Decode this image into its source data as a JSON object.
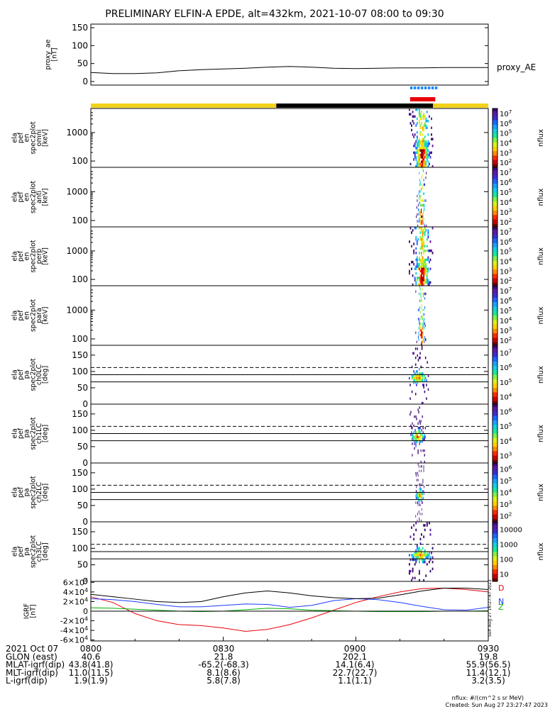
{
  "title": "PRELIMINARY ELFIN-A EPDE, alt=432km, 2021-10-07 08:00 to 09:30",
  "colors": {
    "orbit_day": "#f2d21a",
    "orbit_night": "#000000",
    "science_zone": "#1e88ff",
    "collection": "#e8000b",
    "igrf_d": "#e8000b",
    "igrf_n": "#1e3cff",
    "igrf_z": "#00b000",
    "igrf_total": "#000000"
  },
  "footer_note": {
    "units": "nflux: #/(cm^2 s sr MeV)",
    "created": "Created: Sun Aug 27 23:27:47 2023"
  },
  "side_stamp": "Sun Aug 27 16:27:47 2023",
  "ephemeris": {
    "rows": [
      {
        "label": "2021 Oct 07",
        "values": [
          "0800",
          "0830",
          "0900",
          "0930"
        ]
      },
      {
        "label": "GLON (east)",
        "values": [
          "40.6",
          "21.8",
          "202.1",
          "19.8"
        ]
      },
      {
        "label": "MLAT-igrf(dip)",
        "values": [
          "43.8(41.8)",
          "-65.2(-68.3)",
          "14.1(6.4)",
          "55.9(56.5)"
        ]
      },
      {
        "label": "MLT-igrf(dip)",
        "values": [
          "11.0(11.5)",
          "8.1(8.6)",
          "22.7(22.7)",
          "11.4(12.1)"
        ]
      },
      {
        "label": "L-igrf(dip)",
        "values": [
          "1.9(1.9)",
          "5.8(7.8)",
          "1.1(1.1)",
          "3.2(3.5)"
        ]
      }
    ]
  },
  "chart_data": [
    {
      "type": "line",
      "panel": "proxy_ae",
      "ylabel_lines": [
        "proxy_ae",
        "[nT]"
      ],
      "series_label": "proxy_AE",
      "ylim": [
        -10,
        160
      ],
      "yticks": [
        0,
        50,
        100,
        150
      ],
      "x_minutes": [
        0,
        5,
        10,
        15,
        20,
        25,
        30,
        35,
        40,
        45,
        50,
        55,
        60,
        65,
        70,
        75,
        80,
        85,
        90
      ],
      "values": [
        25,
        22,
        22,
        24,
        30,
        33,
        35,
        37,
        40,
        42,
        40,
        37,
        36,
        37,
        38,
        38,
        39,
        39,
        39
      ]
    },
    {
      "type": "heatmap",
      "panel": "omni",
      "ylabel_lines": [
        "ela",
        "pef",
        "en",
        "spec2plot",
        "omni",
        "[keV]"
      ],
      "scale": "log",
      "ylim": [
        60,
        7000
      ],
      "yticks": [
        100,
        1000
      ],
      "cbar_labels": [
        "10^2",
        "10^3",
        "10^4",
        "10^5",
        "10^6",
        "10^7"
      ],
      "cbar_title": "nflux",
      "active_window_minutes": [
        72.0,
        77.5
      ],
      "peak_minute": 74.5
    },
    {
      "type": "heatmap",
      "panel": "anti",
      "ylabel_lines": [
        "ela",
        "pef",
        "en",
        "spec2plot",
        "anti",
        "[keV]"
      ],
      "scale": "log",
      "ylim": [
        60,
        7000
      ],
      "yticks": [
        100,
        1000
      ],
      "cbar_labels": [
        "10^2",
        "10^3",
        "10^4",
        "10^5",
        "10^6",
        "10^7"
      ],
      "cbar_title": "nflux",
      "active_window_minutes": [
        73.5,
        76.0
      ],
      "peak_minute": 74.8
    },
    {
      "type": "heatmap",
      "panel": "perp",
      "ylabel_lines": [
        "ela",
        "pef",
        "en",
        "spec2plot",
        "perp",
        "[keV]"
      ],
      "scale": "log",
      "ylim": [
        60,
        7000
      ],
      "yticks": [
        100,
        1000
      ],
      "cbar_labels": [
        "10^2",
        "10^3",
        "10^4",
        "10^5",
        "10^6",
        "10^7"
      ],
      "cbar_title": "nflux",
      "active_window_minutes": [
        72.0,
        77.5
      ],
      "peak_minute": 74.5
    },
    {
      "type": "heatmap",
      "panel": "para",
      "ylabel_lines": [
        "ela",
        "pef",
        "en",
        "spec2plot",
        "para",
        "[keV]"
      ],
      "scale": "log",
      "ylim": [
        60,
        7000
      ],
      "yticks": [
        100,
        1000
      ],
      "cbar_labels": [
        "10^2",
        "10^3",
        "10^4",
        "10^5",
        "10^6",
        "10^7"
      ],
      "cbar_title": "nflux",
      "active_window_minutes": [
        73.5,
        76.0
      ],
      "peak_minute": 74.8
    },
    {
      "type": "heatmap",
      "panel": "ch0LC",
      "ylabel_lines": [
        "ela",
        "pef",
        "pa",
        "spec2plot",
        "ch0LC",
        "[deg]"
      ],
      "ylim": [
        0,
        180
      ],
      "yticks": [
        0,
        50,
        100,
        150
      ],
      "ref_lines_deg": {
        "dashed": 112,
        "solid": [
          90,
          68
        ]
      },
      "cbar_labels": [
        "10^4",
        "10^5",
        "10^6",
        "10^7"
      ],
      "cbar_title": "nflux",
      "active_window_minutes": [
        72.0,
        76.5
      ]
    },
    {
      "type": "heatmap",
      "panel": "ch1LC",
      "ylabel_lines": [
        "ela",
        "pef",
        "pa",
        "spec2plot",
        "ch1LC",
        "[deg]"
      ],
      "ylim": [
        0,
        180
      ],
      "yticks": [
        0,
        50,
        100,
        150
      ],
      "ref_lines_deg": {
        "dashed": 112,
        "solid": [
          90,
          68
        ]
      },
      "cbar_labels": [
        "10^3",
        "10^4",
        "10^5",
        "10^6"
      ],
      "cbar_title": "nflux",
      "active_window_minutes": [
        72.2,
        75.8
      ]
    },
    {
      "type": "heatmap",
      "panel": "ch2LC",
      "ylabel_lines": [
        "ela",
        "pef",
        "pa",
        "spec2plot",
        "ch2LC",
        "[deg]"
      ],
      "ylim": [
        0,
        180
      ],
      "yticks": [
        0,
        50,
        100,
        150
      ],
      "ref_lines_deg": {
        "dashed": 112,
        "solid": [
          90,
          68
        ]
      },
      "cbar_labels": [
        "10^2",
        "10^3",
        "10^4",
        "10^5",
        "10^6"
      ],
      "cbar_title": "nflux",
      "active_window_minutes": [
        73.5,
        75.5
      ]
    },
    {
      "type": "heatmap",
      "panel": "ch3LC",
      "ylabel_lines": [
        "ela",
        "pef",
        "pa",
        "spec2plot",
        "ch3LC",
        "[deg]"
      ],
      "ylim": [
        0,
        180
      ],
      "yticks": [
        0,
        50,
        100,
        150
      ],
      "ref_lines_deg": {
        "dashed": 112,
        "solid": [
          90,
          68
        ]
      },
      "cbar_labels": [
        "10",
        "100",
        "1000",
        "10000"
      ],
      "cbar_title": "nflux",
      "active_window_minutes": [
        72.0,
        77.5
      ]
    },
    {
      "type": "line",
      "panel": "IGRF",
      "ylabel_lines": [
        "IGRF",
        "[nT]"
      ],
      "ylim": [
        -62000,
        62000
      ],
      "yticks": [
        -60000,
        -40000,
        -20000,
        0,
        20000,
        40000,
        60000
      ],
      "ytick_labels": [
        "-6×10^4",
        "-4×10^4",
        "-2×10^4",
        "0",
        "2×10^4",
        "4×10^4",
        "6×10^4"
      ],
      "x_minutes": [
        0,
        5,
        10,
        15,
        20,
        25,
        30,
        35,
        40,
        45,
        50,
        55,
        60,
        65,
        70,
        75,
        80,
        85,
        90
      ],
      "series": [
        {
          "name": "D",
          "values": [
            30000,
            18000,
            -5000,
            -20000,
            -28000,
            -30000,
            -35000,
            -42000,
            -38000,
            -28000,
            -14000,
            2000,
            18000,
            30000,
            40000,
            47000,
            48000,
            45000,
            40000
          ]
        },
        {
          "name": "N",
          "values": [
            26000,
            24000,
            20000,
            14000,
            9000,
            9000,
            12000,
            15000,
            14000,
            8000,
            12000,
            22000,
            26000,
            24000,
            18000,
            10000,
            3000,
            2000,
            8000
          ]
        },
        {
          "name": "Z",
          "values": [
            7000,
            6000,
            4000,
            2000,
            0,
            -1000,
            0,
            3000,
            6000,
            5000,
            2000,
            1000,
            0,
            -1000,
            -1000,
            -1000,
            0,
            0,
            1000
          ]
        },
        {
          "name": "",
          "values": [
            35000,
            30000,
            25000,
            20000,
            18000,
            20000,
            30000,
            38000,
            42000,
            38000,
            32000,
            28000,
            26000,
            27000,
            34000,
            42000,
            48000,
            48000,
            45000
          ]
        }
      ]
    }
  ]
}
